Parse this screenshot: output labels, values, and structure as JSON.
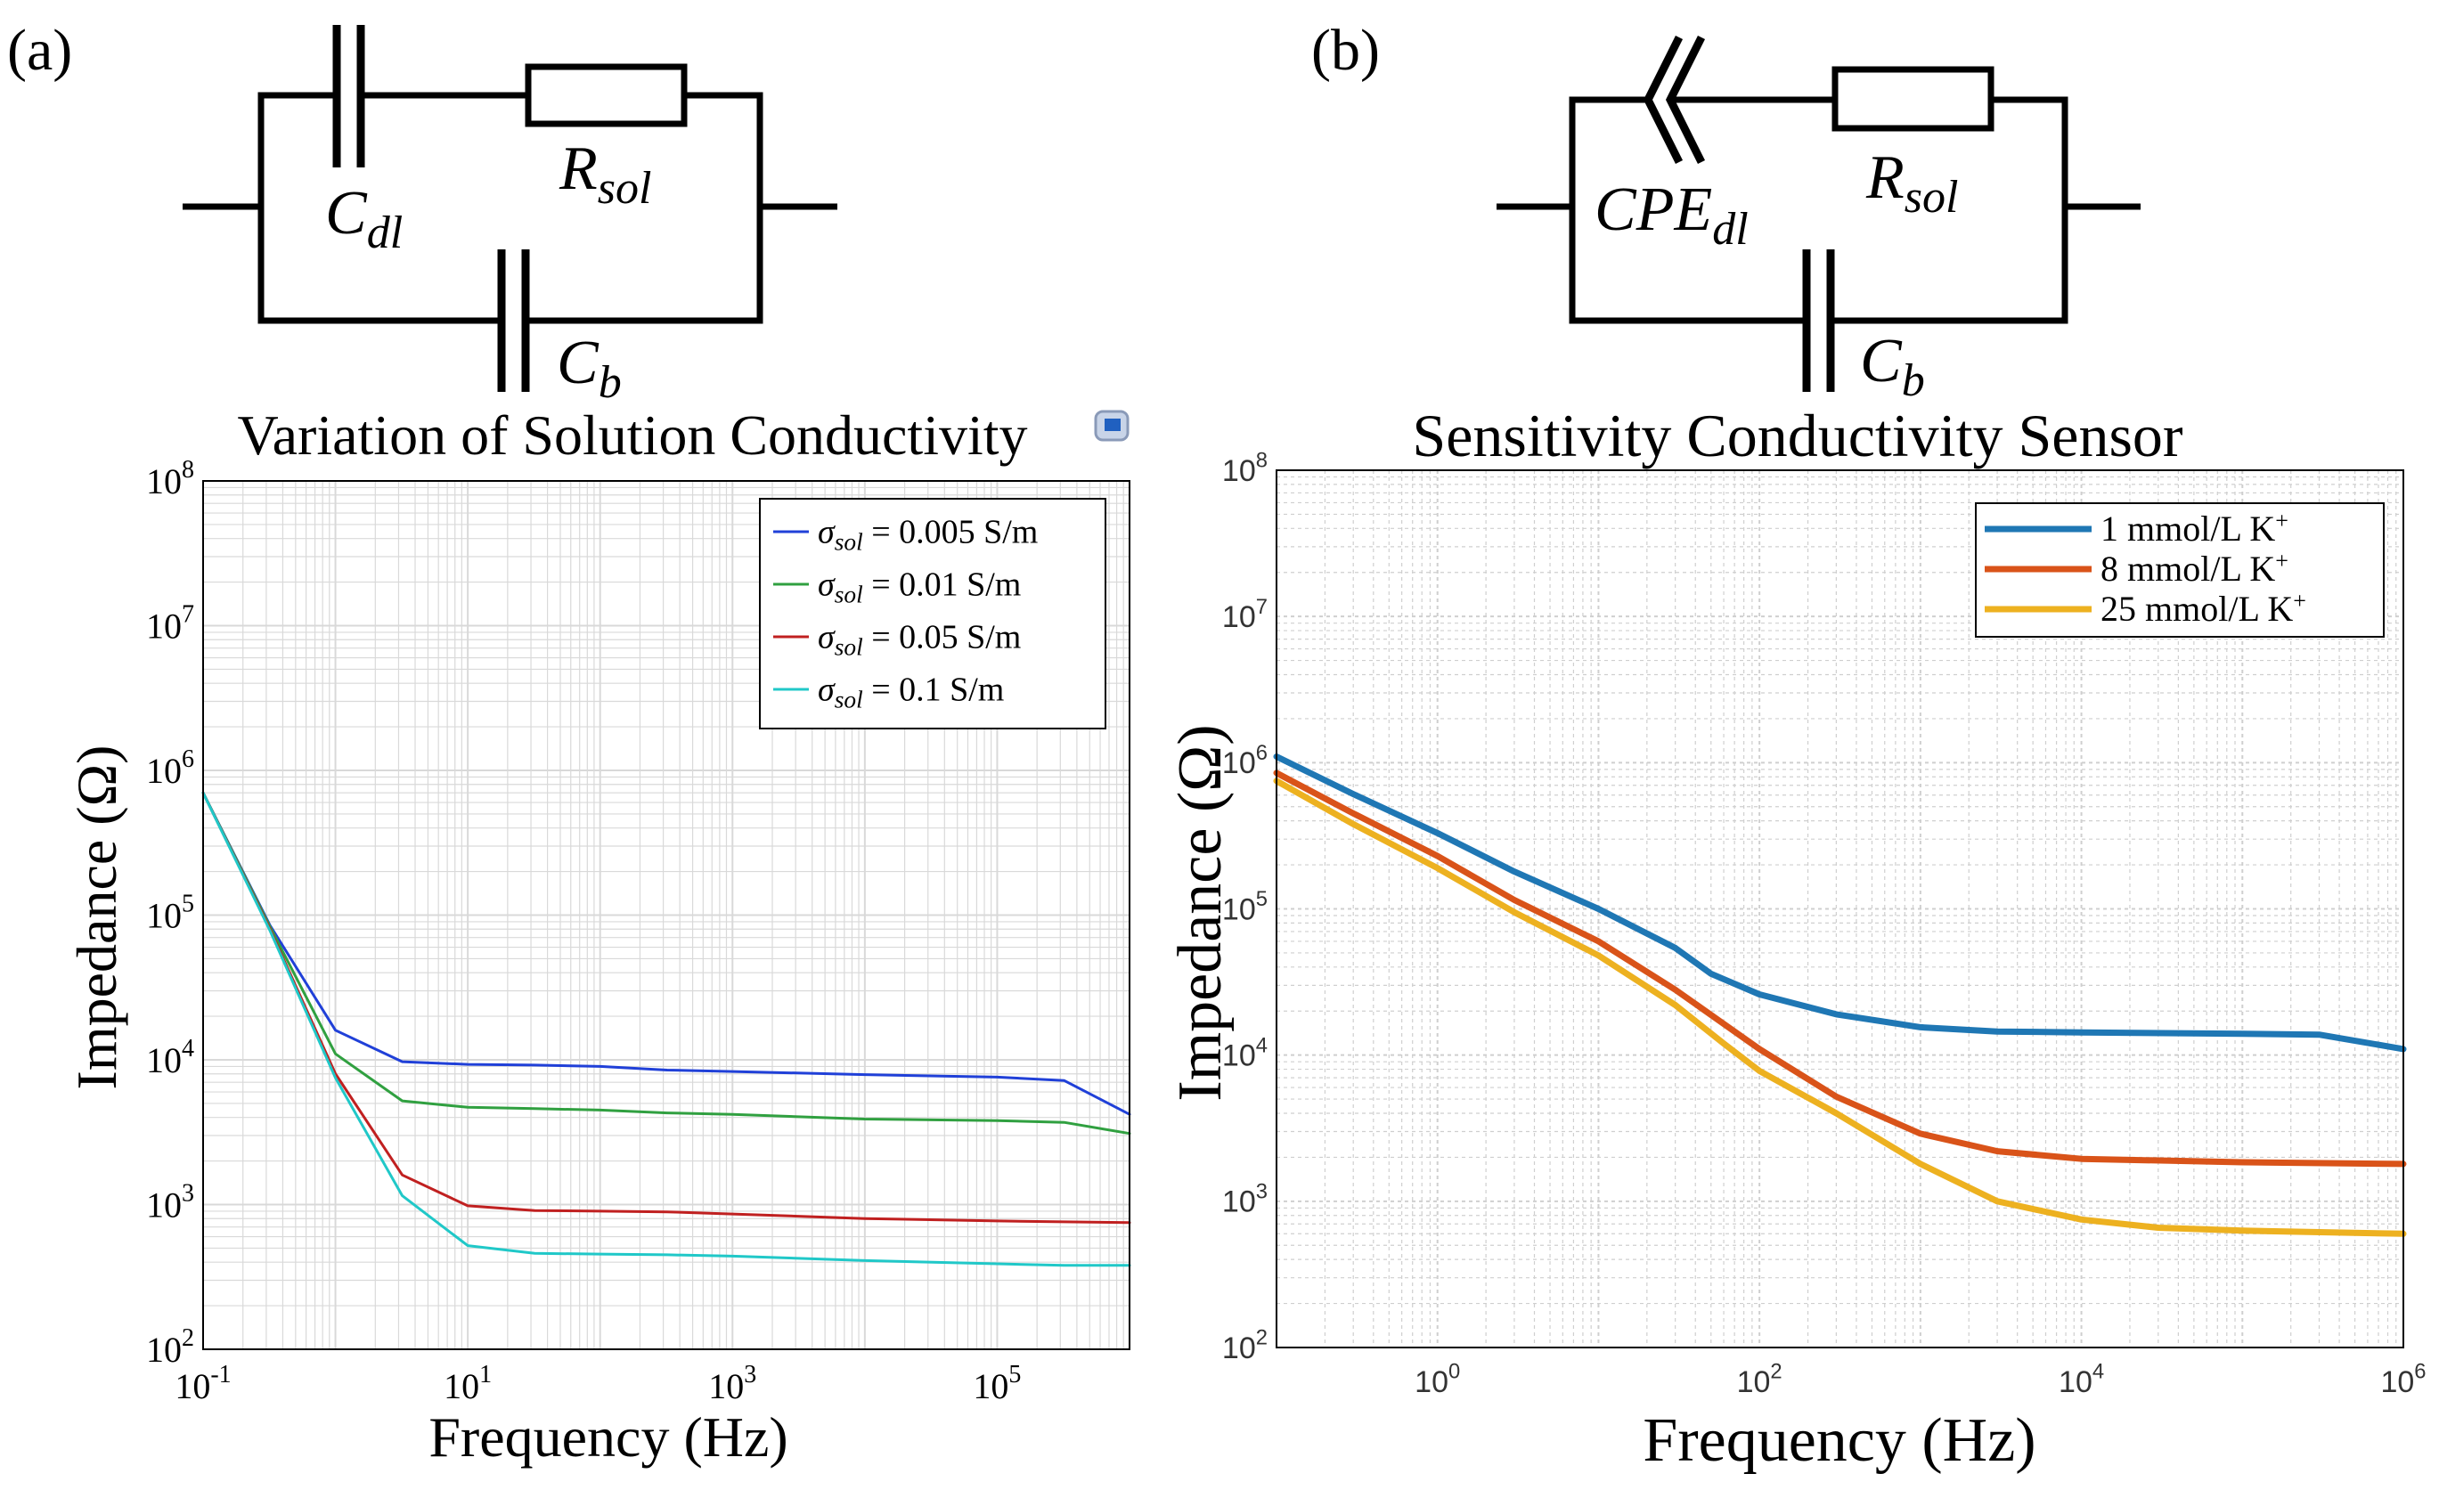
{
  "panels": {
    "a": {
      "label": "(a)",
      "circuit": {
        "cdl": {
          "base": "C",
          "sub": "dl"
        },
        "rsol": {
          "base": "R",
          "sub": "sol"
        },
        "cb": {
          "base": "C",
          "sub": "b"
        }
      }
    },
    "b": {
      "label": "(b)",
      "circuit": {
        "cpe": {
          "base": "CPE",
          "sub": "dl"
        },
        "rsol": {
          "base": "R",
          "sub": "sol"
        },
        "cb": {
          "base": "C",
          "sub": "b"
        }
      }
    }
  },
  "colors": {
    "a_series": [
      "#2040d8",
      "#30a040",
      "#c02020",
      "#20c8c8"
    ],
    "b_series": [
      "#1f77b4",
      "#d95319",
      "#edb120"
    ],
    "grid_a": "#d9d9d9",
    "grid_b": "#cfcfcf"
  },
  "chart_data": [
    {
      "type": "line",
      "title": "Variation of Solution Conductivity",
      "xlabel": "Frequency (Hz)",
      "ylabel": "Impedance (Ω)",
      "xscale": "log",
      "yscale": "log",
      "xlim": [
        0.1,
        1000000
      ],
      "ylim": [
        100,
        100000000
      ],
      "xticks": [
        {
          "base": "10",
          "exp": "-1"
        },
        {
          "base": "10",
          "exp": "1"
        },
        {
          "base": "10",
          "exp": "3"
        },
        {
          "base": "10",
          "exp": "5"
        }
      ],
      "yticks": [
        {
          "base": "10",
          "exp": "2"
        },
        {
          "base": "10",
          "exp": "3"
        },
        {
          "base": "10",
          "exp": "4"
        },
        {
          "base": "10",
          "exp": "5"
        },
        {
          "base": "10",
          "exp": "6"
        },
        {
          "base": "10",
          "exp": "7"
        },
        {
          "base": "10",
          "exp": "8"
        }
      ],
      "grid": true,
      "legend_position": "top-right",
      "series": [
        {
          "name": "σsol = 0.005 S/m",
          "sym": "σ",
          "sub": "sol",
          "rest": " = 0.005 S/m",
          "x": [
            0.1,
            0.32,
            1,
            3.2,
            10,
            32,
            100,
            320,
            1000,
            10000,
            100000,
            320000,
            1000000
          ],
          "y": [
            700000,
            85000,
            16000,
            9700,
            9300,
            9200,
            9000,
            8500,
            8300,
            7900,
            7600,
            7200,
            4200
          ]
        },
        {
          "name": "σsol = 0.01 S/m",
          "sym": "σ",
          "sub": "sol",
          "rest": " = 0.01 S/m",
          "x": [
            0.1,
            0.32,
            1,
            3.2,
            10,
            32,
            100,
            320,
            1000,
            10000,
            100000,
            320000,
            1000000
          ],
          "y": [
            700000,
            83000,
            11000,
            5200,
            4700,
            4600,
            4500,
            4300,
            4200,
            3900,
            3800,
            3700,
            3100
          ]
        },
        {
          "name": "σsol = 0.05 S/m",
          "sym": "σ",
          "sub": "sol",
          "rest": " = 0.05 S/m",
          "x": [
            0.1,
            0.32,
            1,
            3.2,
            10,
            32,
            100,
            320,
            1000,
            10000,
            100000,
            320000,
            1000000
          ],
          "y": [
            700000,
            80000,
            8000,
            1600,
            980,
            910,
            900,
            890,
            860,
            800,
            770,
            760,
            750
          ]
        },
        {
          "name": "σsol = 0.1 S/m",
          "sym": "σ",
          "sub": "sol",
          "rest": " = 0.1 S/m",
          "x": [
            0.1,
            0.32,
            1,
            3.2,
            10,
            32,
            100,
            320,
            1000,
            10000,
            100000,
            320000,
            1000000
          ],
          "y": [
            700000,
            78000,
            7500,
            1150,
            520,
            460,
            455,
            450,
            440,
            410,
            390,
            380,
            380
          ]
        }
      ]
    },
    {
      "type": "line",
      "title": "Sensitivity Conductivity Sensor",
      "xlabel": "Frequency (Hz)",
      "ylabel": "Impedance (Ω)",
      "xscale": "log",
      "yscale": "log",
      "xlim": [
        0.1,
        1000000
      ],
      "ylim": [
        100,
        100000000
      ],
      "xticks": [
        {
          "base": "10",
          "exp": "0"
        },
        {
          "base": "10",
          "exp": "2"
        },
        {
          "base": "10",
          "exp": "4"
        },
        {
          "base": "10",
          "exp": "6"
        }
      ],
      "yticks": [
        {
          "base": "10",
          "exp": "2"
        },
        {
          "base": "10",
          "exp": "3"
        },
        {
          "base": "10",
          "exp": "4"
        },
        {
          "base": "10",
          "exp": "5"
        },
        {
          "base": "10",
          "exp": "6"
        },
        {
          "base": "10",
          "exp": "7"
        },
        {
          "base": "10",
          "exp": "8"
        }
      ],
      "grid": true,
      "legend_position": "top-right",
      "series": [
        {
          "name": "1 mmol/L K+",
          "text": "1 mmol/L K",
          "sup": "+",
          "x": [
            0.1,
            0.3,
            1,
            3,
            10,
            30,
            50,
            100,
            300,
            1000,
            3000,
            10000,
            100000,
            300000,
            1000000
          ],
          "y": [
            1100000,
            610000,
            330000,
            180000,
            100000,
            54000,
            36000,
            26000,
            19000,
            15500,
            14500,
            14300,
            14000,
            13800,
            11000
          ]
        },
        {
          "name": "8 mmol/L K+",
          "text": "8 mmol/L K",
          "sup": "+",
          "x": [
            0.1,
            0.3,
            1,
            3,
            10,
            30,
            100,
            300,
            1000,
            3000,
            10000,
            100000,
            1000000
          ],
          "y": [
            850000,
            450000,
            230000,
            115000,
            60000,
            28000,
            11000,
            5200,
            2900,
            2200,
            1950,
            1850,
            1800
          ]
        },
        {
          "name": "25 mmol/L K+",
          "text": "25 mmol/L K",
          "sup": "+",
          "x": [
            0.1,
            0.3,
            1,
            3,
            10,
            30,
            60,
            100,
            300,
            1000,
            3000,
            10000,
            30000,
            100000,
            1000000
          ],
          "y": [
            750000,
            380000,
            190000,
            95000,
            48000,
            22000,
            12000,
            7800,
            4000,
            1800,
            1000,
            750,
            660,
            630,
            600
          ]
        }
      ]
    }
  ]
}
